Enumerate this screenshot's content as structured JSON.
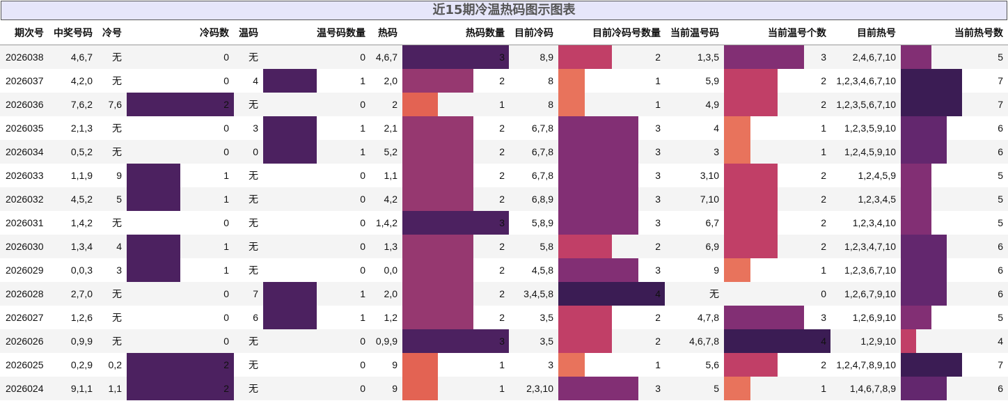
{
  "title": "近15期冷温热码图示图表",
  "colors": {
    "1": "#e36353",
    "2": "#c13f67",
    "3": "#963870",
    "4": "#822f74",
    "5": "#63276e",
    "6": "#4c2160",
    "7": "#3b1c54"
  },
  "chart_data": {
    "type": "table",
    "columns": [
      "期次号",
      "中奖号码",
      "冷号",
      "冷码数",
      "温码",
      "温号码数量",
      "热码",
      "热码数量",
      "目前冷码",
      "目前冷码号数量",
      "当前温号码",
      "当前温号个数",
      "目前热号",
      "当前热号数"
    ],
    "rows": [
      [
        "2026038",
        "4,6,7",
        "无",
        0,
        "无",
        0,
        "4,6,7",
        3,
        "8,9",
        2,
        "1,3,5",
        3,
        "2,4,6,7,10",
        5
      ],
      [
        "2026037",
        "4,2,0",
        "无",
        0,
        "4",
        1,
        "2,0",
        2,
        "8",
        1,
        "5,9",
        2,
        "1,2,3,4,6,7,10",
        7
      ],
      [
        "2026036",
        "7,6,2",
        "7,6",
        2,
        "无",
        0,
        "2",
        1,
        "8",
        1,
        "4,9",
        2,
        "1,2,3,5,6,7,10",
        7
      ],
      [
        "2026035",
        "2,1,3",
        "无",
        0,
        "3",
        1,
        "2,1",
        2,
        "6,7,8",
        3,
        "4",
        1,
        "1,2,3,5,9,10",
        6
      ],
      [
        "2026034",
        "0,5,2",
        "无",
        0,
        "0",
        1,
        "5,2",
        2,
        "6,7,8",
        3,
        "3",
        1,
        "1,2,4,5,9,10",
        6
      ],
      [
        "2026033",
        "1,1,9",
        "9",
        1,
        "无",
        0,
        "1,1",
        2,
        "6,7,8",
        3,
        "3,10",
        2,
        "1,2,4,5,9",
        5
      ],
      [
        "2026032",
        "4,5,2",
        "5",
        1,
        "无",
        0,
        "4,2",
        2,
        "6,8,9",
        3,
        "7,10",
        2,
        "1,2,3,4,5",
        5
      ],
      [
        "2026031",
        "1,4,2",
        "无",
        0,
        "无",
        0,
        "1,4,2",
        3,
        "5,8,9",
        3,
        "6,7",
        2,
        "1,2,3,4,10",
        5
      ],
      [
        "2026030",
        "1,3,4",
        "4",
        1,
        "无",
        0,
        "1,3",
        2,
        "5,8",
        2,
        "6,9",
        2,
        "1,2,3,4,7,10",
        6
      ],
      [
        "2026029",
        "0,0,3",
        "3",
        1,
        "无",
        0,
        "0,0",
        2,
        "4,5,8",
        3,
        "9",
        1,
        "1,2,3,6,7,10",
        6
      ],
      [
        "2026028",
        "2,7,0",
        "无",
        0,
        "7",
        1,
        "2,0",
        2,
        "3,4,5,8",
        4,
        "无",
        0,
        "1,2,6,7,9,10",
        6
      ],
      [
        "2026027",
        "1,2,6",
        "无",
        0,
        "6",
        1,
        "1,2",
        2,
        "3,5",
        2,
        "4,7,8",
        3,
        "1,2,6,9,10",
        5
      ],
      [
        "2026026",
        "0,9,9",
        "无",
        0,
        "无",
        0,
        "0,9,9",
        3,
        "3,5",
        2,
        "4,6,7,8",
        4,
        "1,2,9,10",
        4
      ],
      [
        "2026025",
        "0,2,9",
        "0,2",
        2,
        "无",
        0,
        "9",
        1,
        "3",
        1,
        "5,6",
        2,
        "1,2,4,7,8,9,10",
        7
      ],
      [
        "2026024",
        "9,1,1",
        "1,1",
        2,
        "无",
        0,
        "9",
        1,
        "2,3,10",
        3,
        "5",
        1,
        "1,4,6,7,8,9",
        6
      ]
    ]
  }
}
